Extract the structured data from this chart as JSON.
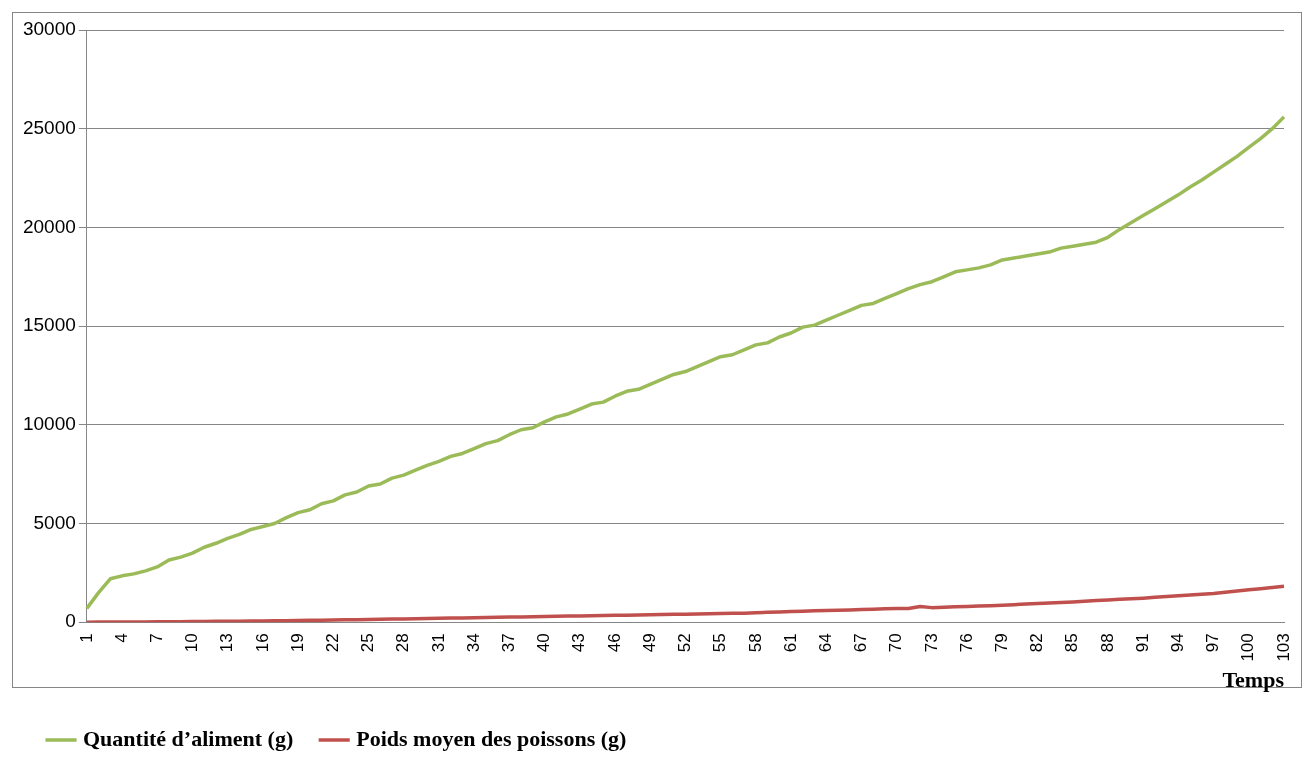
{
  "chart_data": {
    "type": "line",
    "xlabel": "Temps",
    "categories": [
      "1",
      null,
      null,
      "4",
      null,
      null,
      "7",
      null,
      null,
      "10",
      null,
      null,
      "13",
      null,
      null,
      "16",
      null,
      null,
      "19",
      null,
      null,
      "22",
      null,
      null,
      "25",
      null,
      null,
      "28",
      null,
      null,
      "31",
      null,
      null,
      "34",
      null,
      null,
      "37",
      null,
      null,
      "40",
      null,
      null,
      "43",
      null,
      null,
      "46",
      null,
      null,
      "49",
      null,
      null,
      "52",
      null,
      null,
      "55",
      null,
      null,
      "58",
      null,
      null,
      "61",
      null,
      null,
      "64",
      null,
      null,
      "67",
      null,
      null,
      "70",
      null,
      null,
      "73",
      null,
      null,
      "76",
      null,
      null,
      "79",
      null,
      null,
      "82",
      null,
      null,
      "85",
      null,
      null,
      "88",
      null,
      null,
      "91",
      null,
      null,
      "94",
      null,
      null,
      "97",
      null,
      null,
      "100",
      null,
      null,
      "103"
    ],
    "series": [
      {
        "name": "Quantité d’aliment (g)",
        "color": "#9bbb59",
        "values": [
          700,
          1500,
          2200,
          2350,
          2450,
          2600,
          2800,
          3150,
          3300,
          3500,
          3800,
          4000,
          4250,
          4450,
          4700,
          4850,
          5000,
          5300,
          5550,
          5700,
          6000,
          6150,
          6450,
          6600,
          6900,
          7000,
          7300,
          7450,
          7700,
          7950,
          8150,
          8400,
          8550,
          8800,
          9050,
          9200,
          9500,
          9750,
          9850,
          10150,
          10400,
          10550,
          10800,
          11050,
          11150,
          11450,
          11700,
          11800,
          12050,
          12300,
          12550,
          12700,
          12950,
          13200,
          13450,
          13550,
          13800,
          14050,
          14150,
          14450,
          14650,
          14950,
          15050,
          15300,
          15550,
          15800,
          16050,
          16150,
          16400,
          16650,
          16900,
          17100,
          17250,
          17500,
          17750,
          17850,
          17950,
          18100,
          18350,
          18450,
          18550,
          18650,
          18750,
          18950,
          19050,
          19150,
          19250,
          19500,
          19900,
          20250,
          20600,
          20950,
          21300,
          21650,
          22050,
          22400,
          22800,
          23200,
          23600,
          24050,
          24500,
          25000,
          25600
        ]
      },
      {
        "name": "Poids moyen des poissons (g)",
        "color": "#c0504d",
        "values": [
          5,
          8,
          10,
          12,
          15,
          18,
          20,
          25,
          30,
          35,
          40,
          45,
          50,
          55,
          60,
          65,
          70,
          80,
          90,
          95,
          100,
          110,
          120,
          130,
          140,
          150,
          160,
          170,
          180,
          190,
          200,
          210,
          220,
          230,
          240,
          250,
          260,
          270,
          280,
          290,
          300,
          310,
          320,
          330,
          340,
          350,
          360,
          370,
          380,
          390,
          400,
          410,
          420,
          430,
          440,
          450,
          460,
          480,
          500,
          520,
          540,
          560,
          580,
          600,
          610,
          620,
          640,
          660,
          680,
          690,
          700,
          800,
          740,
          760,
          780,
          800,
          820,
          840,
          860,
          890,
          920,
          950,
          980,
          1000,
          1030,
          1060,
          1100,
          1130,
          1160,
          1190,
          1220,
          1260,
          1300,
          1340,
          1380,
          1420,
          1460,
          1520,
          1580,
          1640,
          1700,
          1760,
          1820
        ]
      }
    ],
    "ylim": [
      0,
      30000
    ],
    "yticks": [
      0,
      5000,
      10000,
      15000,
      20000,
      25000,
      30000
    ],
    "grid": "y",
    "legend": "bottom left",
    "marker": "none"
  }
}
